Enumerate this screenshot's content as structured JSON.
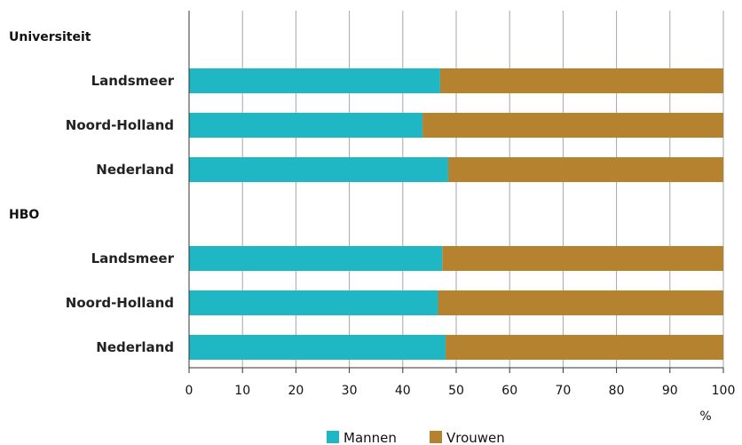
{
  "chart_data": {
    "type": "bar",
    "orientation": "horizontal",
    "stacked": true,
    "groups": [
      {
        "label": "Universiteit",
        "categories": [
          "Landsmeer",
          "Noord-Holland",
          "Nederland"
        ]
      },
      {
        "label": "HBO",
        "categories": [
          "Landsmeer",
          "Noord-Holland",
          "Nederland"
        ]
      }
    ],
    "series": [
      {
        "name": "Mannen",
        "color": "#1eb7c3",
        "values": [
          47,
          43.7,
          48.5,
          47.4,
          46.6,
          48
        ]
      },
      {
        "name": "Vrouwen",
        "color": "#b5822f",
        "values": [
          53,
          56.3,
          51.5,
          52.6,
          53.4,
          52
        ]
      }
    ],
    "xlim": [
      0,
      100
    ],
    "xticks": [
      "0",
      "10",
      "20",
      "30",
      "40",
      "50",
      "60",
      "70",
      "80",
      "90",
      "100"
    ],
    "xunit": "%",
    "grid": true,
    "legend_position": "bottom"
  }
}
